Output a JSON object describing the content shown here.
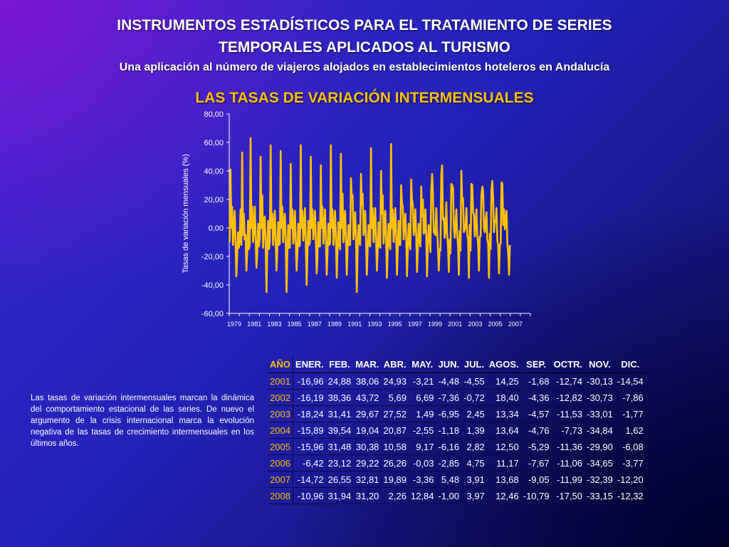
{
  "slide": {
    "title_line1": "INSTRUMENTOS ESTADÍSTICOS PARA EL TRATAMIENTO DE SERIES",
    "title_line2": "TEMPORALES APLICADOS AL TURISMO",
    "subtitle": "Una aplicación al número de viajeros alojados en establecimientos hoteleros en Andalucía",
    "section_title": "LAS TASAS DE VARIACIÓN INTERMENSUALES",
    "note": "Las tasas de variación intermensuales marcan la dinámica del comportamiento estacional de las series. De nuevo el argumento de la crisis internacional marca la evolución negativa de las tasas de crecimiento intermensuales en los últimos años."
  },
  "colors": {
    "line": "#ffc000",
    "highlight": "#ffc000",
    "text": "#ffffff",
    "background": "#2222b8"
  },
  "chart_data": {
    "type": "line",
    "title": "",
    "xlabel": "",
    "ylabel": "Tasas de variación mensuales (%)",
    "ylim": [
      -60,
      80
    ],
    "yticks": [
      "80,00",
      "60,00",
      "40,00",
      "20,00",
      "0,00",
      "-20,00",
      "-40,00",
      "-60,00"
    ],
    "xticks": [
      "1979",
      "1981",
      "1983",
      "1985",
      "1987",
      "1989",
      "1991",
      "1993",
      "1995",
      "1997",
      "1999",
      "2001",
      "2003",
      "2005",
      "2007"
    ],
    "x_start": "1979",
    "frequency": "monthly",
    "grid": false,
    "legend": "none",
    "series": [
      {
        "name": "",
        "values": [
          -10,
          41,
          0,
          15,
          -12,
          0,
          12,
          -8,
          -34,
          -20,
          -3,
          -14,
          -8,
          13,
          -12,
          53,
          -5,
          10,
          -8,
          -5,
          -30,
          -16,
          5,
          -15,
          -12,
          63,
          0,
          15,
          -10,
          0,
          15,
          -5,
          -28,
          -18,
          3,
          -13,
          -8,
          50,
          0,
          23,
          -14,
          5,
          8,
          -9,
          -45,
          -15,
          5,
          -15,
          -10,
          58,
          0,
          10,
          -12,
          0,
          12,
          -8,
          -30,
          -15,
          4,
          -12,
          -11,
          54,
          0,
          15,
          -10,
          0,
          10,
          -7,
          -45,
          -18,
          2,
          -14,
          -14,
          45,
          0,
          13,
          -11,
          -2,
          12,
          -8,
          -30,
          -18,
          3,
          -13,
          -12,
          58,
          0,
          12,
          -9,
          0,
          14,
          -8,
          -40,
          -17,
          5,
          -12,
          -10,
          50,
          0,
          13,
          -8,
          0,
          12,
          -7,
          -32,
          -20,
          4,
          -13,
          -13,
          44,
          0,
          15,
          -11,
          0,
          13,
          -8,
          -33,
          -17,
          3,
          -12,
          -11,
          58,
          0,
          13,
          -12,
          -2,
          12,
          -7,
          -35,
          -16,
          4,
          -10,
          -15,
          52,
          0,
          24,
          -10,
          1,
          12,
          -8,
          -33,
          -14,
          2,
          -12,
          -12,
          35,
          22,
          23,
          -8,
          -2,
          11,
          -5,
          -45,
          -16,
          2,
          -10,
          -12,
          38,
          16,
          24,
          -5,
          0,
          12,
          -8,
          -33,
          -15,
          2,
          -12,
          -13,
          56,
          0,
          14,
          -10,
          0,
          14,
          -7,
          -30,
          -16,
          4,
          -12,
          -14,
          40,
          10,
          23,
          -11,
          -1,
          12,
          -5,
          -35,
          -15,
          3,
          -10,
          -15,
          59,
          0,
          13,
          -10,
          0,
          14,
          -5,
          -33,
          -15,
          5,
          -12,
          -12,
          30,
          17,
          15,
          -8,
          0,
          10,
          -5,
          -34,
          -16,
          3,
          -10,
          -15,
          34,
          20,
          16,
          -5,
          0,
          13,
          -4,
          -31,
          -15,
          3,
          -8,
          -13,
          29,
          8,
          20,
          -4,
          -3,
          13,
          -5,
          -34,
          -11,
          2,
          -6,
          -17,
          25,
          38,
          25,
          -3,
          -4,
          -5,
          14,
          -2,
          -13,
          -30,
          -15,
          -16,
          38,
          44,
          6,
          7,
          -7,
          -1,
          18,
          -4,
          -13,
          -31,
          -8,
          -18,
          31,
          30,
          28,
          1,
          -7,
          2,
          13,
          -5,
          -12,
          -33,
          -2,
          -16,
          40,
          19,
          21,
          -3,
          -1,
          1,
          14,
          -5,
          -8,
          -35,
          2,
          -16,
          31,
          30,
          11,
          9,
          -6,
          3,
          13,
          -5,
          -11,
          -30,
          -6,
          -6,
          23,
          29,
          26,
          0,
          -3,
          5,
          11,
          -8,
          -11,
          -35,
          -4,
          -15,
          27,
          33,
          20,
          -3,
          5,
          4,
          14,
          -9,
          -12,
          -32,
          -12,
          -11,
          32,
          31,
          2,
          13,
          -1,
          4,
          12,
          -11,
          -18,
          -33,
          -12
        ]
      }
    ]
  },
  "table": {
    "headers": [
      "AÑO",
      "ENER.",
      "FEB.",
      "MAR.",
      "ABR.",
      "MAY.",
      "JUN.",
      "JUL.",
      "AGOS.",
      "SEP.",
      "OCTR.",
      "NOV.",
      "DIC."
    ],
    "rows": [
      [
        "2001",
        "-16,96",
        "24,88",
        "38,06",
        "24,93",
        "-3,21",
        "-4,48",
        "-4,55",
        "14,25",
        "-1,68",
        "-12,74",
        "-30,13",
        "-14,54"
      ],
      [
        "2002",
        "-16,19",
        "38,36",
        "43,72",
        "5,69",
        "6,69",
        "-7,36",
        "-0,72",
        "18,40",
        "-4,36",
        "-12,82",
        "-30,73",
        "-7,86"
      ],
      [
        "2003",
        "-18,24",
        "31,41",
        "29,67",
        "27,52",
        "1,49",
        "-6,95",
        "2,45",
        "13,34",
        "-4,57",
        "-11,53",
        "-33,01",
        "-1,77"
      ],
      [
        "2004",
        "-15,89",
        "39,54",
        "19,04",
        "20,87",
        "-2,55",
        "-1,18",
        "1,39",
        "13,64",
        "-4,76",
        "-7,73",
        "-34,84",
        "1,62"
      ],
      [
        "2005",
        "-15,96",
        "31,48",
        "30,38",
        "10,58",
        "9,17",
        "-6,16",
        "2,82",
        "12,50",
        "-5,29",
        "-11,36",
        "-29,90",
        "-6,08"
      ],
      [
        "2006",
        "-6,42",
        "23,12",
        "29,22",
        "26,26",
        "-0,03",
        "-2,85",
        "4,75",
        "11,17",
        "-7,67",
        "-11,06",
        "-34,65",
        "-3,77"
      ],
      [
        "2007",
        "-14,72",
        "26,55",
        "32,81",
        "19,89",
        "-3,36",
        "5,48",
        "3,91",
        "13,68",
        "-9,05",
        "-11,99",
        "-32,39",
        "-12,20"
      ],
      [
        "2008",
        "-10,96",
        "31,94",
        "31,20",
        "2,26",
        "12,84",
        "-1,00",
        "3,97",
        "12,46",
        "-10,79",
        "-17,50",
        "-33,15",
        "-12,32"
      ]
    ]
  }
}
